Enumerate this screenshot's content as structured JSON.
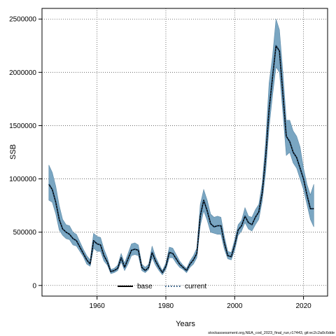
{
  "chart_data": {
    "type": "line",
    "xlabel": "Years",
    "ylabel": "SSB",
    "xlim": [
      1944,
      2027
    ],
    "ylim": [
      -100000,
      2600000
    ],
    "xticks": [
      1960,
      1980,
      2000,
      2020
    ],
    "yticks": [
      0,
      500000,
      1000000,
      1500000,
      2000000,
      2500000
    ],
    "xtick_labels": [
      "1960",
      "1980",
      "2000",
      "2020"
    ],
    "ytick_labels": [
      "0",
      "500000",
      "1000000",
      "1500000",
      "2000000",
      "2500000"
    ],
    "grid": true,
    "legend": {
      "position": "bottom-left",
      "entries": [
        {
          "label": "base",
          "color": "#000000",
          "style": "solid"
        },
        {
          "label": "current",
          "color": "#1f4e79",
          "style": "dotted"
        }
      ]
    },
    "band_color": "#7aa6c2",
    "footer": "stockassessment.org,NEA_cod_2023_final_run,r17443, git:ec2c2a0c6dde",
    "x": [
      1946,
      1947,
      1948,
      1949,
      1950,
      1951,
      1952,
      1953,
      1954,
      1955,
      1956,
      1957,
      1958,
      1959,
      1960,
      1961,
      1962,
      1963,
      1964,
      1965,
      1966,
      1967,
      1968,
      1969,
      1970,
      1971,
      1972,
      1973,
      1974,
      1975,
      1976,
      1977,
      1978,
      1979,
      1980,
      1981,
      1982,
      1983,
      1984,
      1985,
      1986,
      1987,
      1988,
      1989,
      1990,
      1991,
      1992,
      1993,
      1994,
      1995,
      1996,
      1997,
      1998,
      1999,
      2000,
      2001,
      2002,
      2003,
      2004,
      2005,
      2006,
      2007,
      2008,
      2009,
      2010,
      2011,
      2012,
      2013,
      2014,
      2015,
      2016,
      2017,
      2018,
      2019,
      2020,
      2021,
      2022,
      2023
    ],
    "series": [
      {
        "name": "base",
        "values": [
          950000,
          900000,
          780000,
          620000,
          530000,
          500000,
          480000,
          440000,
          420000,
          360000,
          300000,
          240000,
          200000,
          420000,
          390000,
          380000,
          280000,
          220000,
          130000,
          140000,
          160000,
          260000,
          170000,
          250000,
          330000,
          340000,
          330000,
          170000,
          140000,
          170000,
          310000,
          230000,
          170000,
          120000,
          180000,
          310000,
          300000,
          250000,
          200000,
          170000,
          140000,
          200000,
          240000,
          300000,
          650000,
          800000,
          700000,
          580000,
          550000,
          560000,
          560000,
          400000,
          280000,
          270000,
          380000,
          520000,
          560000,
          650000,
          590000,
          570000,
          640000,
          690000,
          870000,
          1200000,
          1650000,
          1950000,
          2250000,
          2200000,
          1800000,
          1400000,
          1350000,
          1250000,
          1200000,
          1100000,
          1000000,
          850000,
          720000,
          720000
        ]
      },
      {
        "name": "current",
        "values": [
          950000,
          900000,
          780000,
          620000,
          530000,
          500000,
          480000,
          440000,
          420000,
          360000,
          300000,
          240000,
          200000,
          420000,
          390000,
          380000,
          280000,
          220000,
          130000,
          140000,
          160000,
          260000,
          170000,
          250000,
          330000,
          340000,
          330000,
          170000,
          140000,
          170000,
          310000,
          230000,
          170000,
          120000,
          180000,
          310000,
          300000,
          250000,
          200000,
          170000,
          140000,
          200000,
          240000,
          300000,
          650000,
          800000,
          700000,
          580000,
          550000,
          560000,
          560000,
          400000,
          280000,
          270000,
          380000,
          520000,
          560000,
          650000,
          590000,
          570000,
          640000,
          690000,
          870000,
          1200000,
          1650000,
          1950000,
          2250000,
          2200000,
          1800000,
          1400000,
          1350000,
          1250000,
          1200000,
          1100000,
          1000000,
          850000,
          720000,
          720000
        ]
      }
    ],
    "band_upper": [
      1130000,
      1060000,
      930000,
      750000,
      620000,
      570000,
      560000,
      500000,
      480000,
      410000,
      340000,
      280000,
      240000,
      490000,
      460000,
      450000,
      340000,
      260000,
      150000,
      160000,
      190000,
      300000,
      210000,
      300000,
      390000,
      400000,
      380000,
      200000,
      170000,
      200000,
      370000,
      270000,
      200000,
      140000,
      210000,
      360000,
      350000,
      290000,
      230000,
      190000,
      160000,
      230000,
      280000,
      350000,
      760000,
      900000,
      800000,
      670000,
      640000,
      650000,
      640000,
      460000,
      320000,
      310000,
      430000,
      570000,
      610000,
      730000,
      650000,
      640000,
      710000,
      760000,
      960000,
      1350000,
      1900000,
      2150000,
      2500000,
      2400000,
      2000000,
      1550000,
      1550000,
      1450000,
      1400000,
      1300000,
      1100000,
      950000,
      850000,
      950000
    ],
    "band_lower": [
      800000,
      780000,
      670000,
      520000,
      470000,
      440000,
      430000,
      380000,
      370000,
      320000,
      270000,
      200000,
      180000,
      350000,
      320000,
      320000,
      230000,
      190000,
      110000,
      120000,
      140000,
      220000,
      140000,
      200000,
      280000,
      290000,
      280000,
      140000,
      120000,
      150000,
      260000,
      190000,
      140000,
      100000,
      150000,
      260000,
      260000,
      210000,
      170000,
      150000,
      120000,
      170000,
      200000,
      260000,
      560000,
      700000,
      610000,
      500000,
      490000,
      480000,
      480000,
      340000,
      250000,
      240000,
      330000,
      470000,
      510000,
      590000,
      530000,
      510000,
      570000,
      620000,
      790000,
      1060000,
      1480000,
      1780000,
      2050000,
      2000000,
      1620000,
      1220000,
      1250000,
      1150000,
      1100000,
      1000000,
      900000,
      760000,
      620000,
      550000
    ]
  }
}
